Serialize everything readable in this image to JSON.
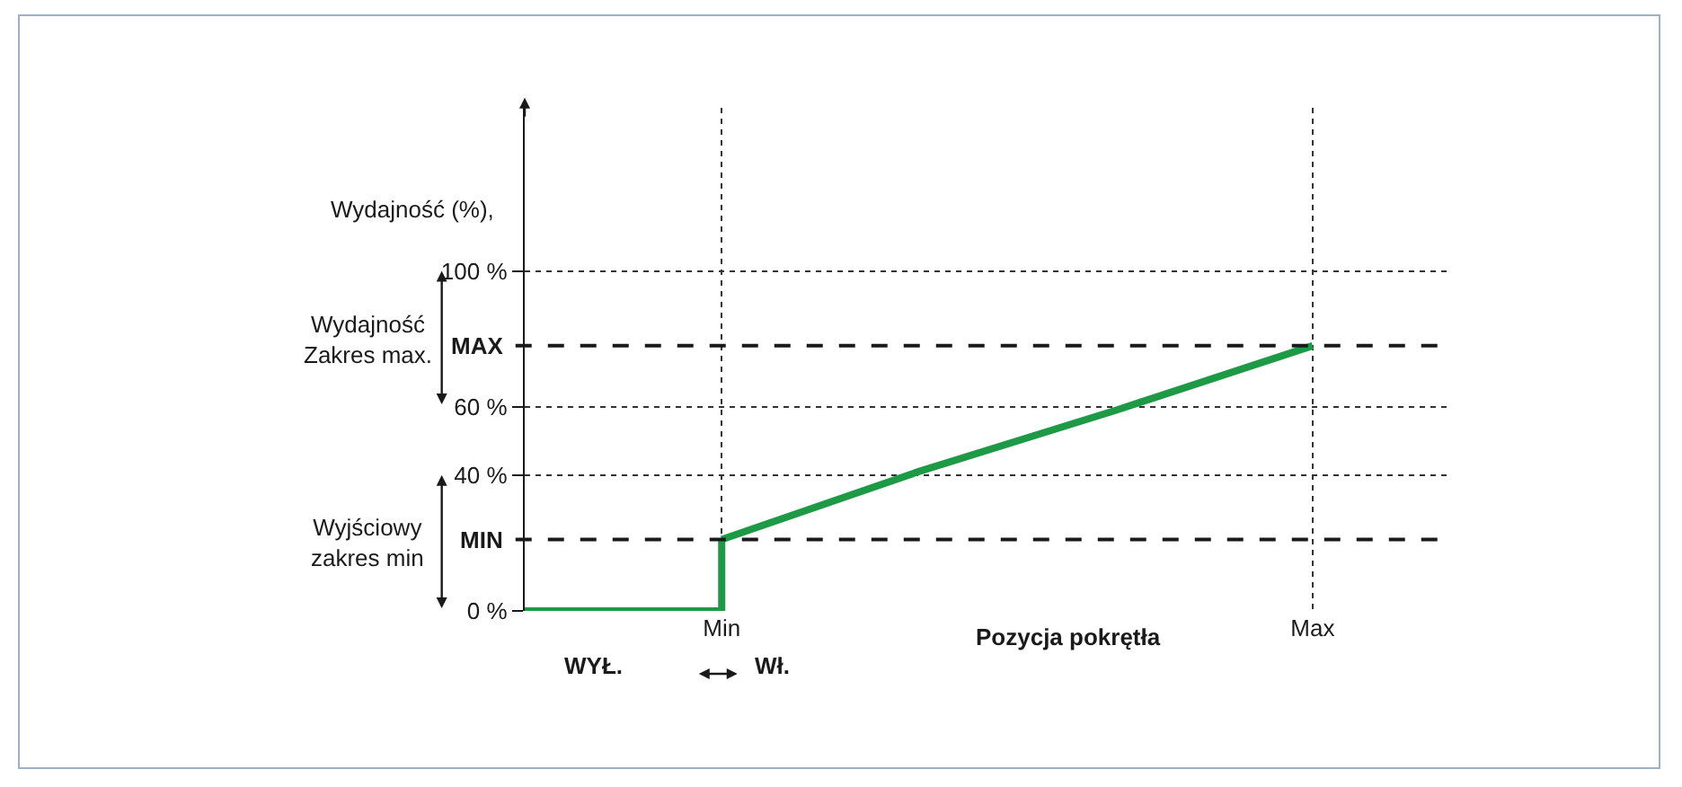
{
  "chart_data": {
    "type": "line",
    "xlabel": "Pozycja pokrętła",
    "ylabel": "Wydajność (%),",
    "categories": [
      null,
      "Min",
      null,
      null,
      "Max"
    ],
    "series": [
      {
        "type": "step",
        "color": "#1e9a47",
        "values": [
          0,
          21,
          null,
          null,
          null
        ]
      },
      {
        "color": "#1e9a47",
        "values": [
          null,
          21,
          41,
          59,
          78
        ]
      }
    ],
    "ylim": [
      0,
      148
    ],
    "yticks": [
      {
        "value": 0,
        "label": "0 %"
      },
      {
        "value": 40,
        "label": "40 %"
      },
      {
        "value": 60,
        "label": "60 %"
      },
      {
        "value": 100,
        "label": "100 %"
      }
    ],
    "ref_lines": [
      {
        "axis": "y",
        "value": 21,
        "label": "MIN",
        "color": "#1a1a1a",
        "line_style": "dashed"
      },
      {
        "axis": "y",
        "value": 78,
        "label": "MAX",
        "color": "#1a1a1a",
        "line_style": "dashed"
      }
    ],
    "annotations": [
      "Wydajność\nZakres max.",
      "Wyjściowy\nzakres min",
      "WYŁ.",
      "Wł."
    ],
    "grid": true,
    "marker": "none",
    "line_style": "solid"
  }
}
